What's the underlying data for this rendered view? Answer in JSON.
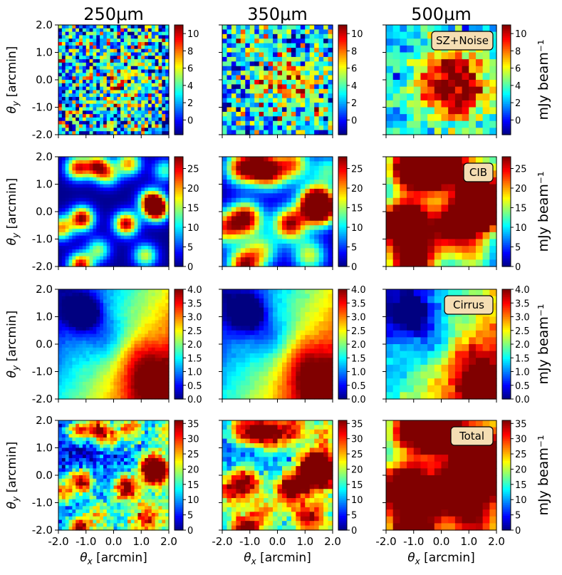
{
  "chart_data": {
    "type": "heatmap",
    "column_titles": [
      "250μm",
      "350μm",
      "500μm"
    ],
    "xlabel": "θx [arcmin]",
    "ylabel": "θy [arcmin]",
    "colorbar_label": "mJy beam⁻¹",
    "x_ticks": [
      "-2.0",
      "-1.0",
      "0.0",
      "1.0",
      "2.0"
    ],
    "y_ticks": [
      "2.0",
      "1.0",
      "0.0",
      "-1.0",
      "-2.0"
    ],
    "xlim": [
      -2.0,
      2.0
    ],
    "ylim": [
      -2.0,
      2.0
    ],
    "colormap": "jet",
    "pixel_counts": [
      32,
      24,
      16
    ],
    "rows": [
      {
        "label": "SZ+Noise",
        "clim": [
          -1.7,
          11.0
        ],
        "colorbar_ticks": [
          "0",
          "2",
          "4",
          "6",
          "8",
          "10"
        ],
        "colorbar_tick_values": [
          0,
          2,
          4,
          6,
          8,
          10
        ]
      },
      {
        "label": "CIB",
        "clim": [
          0,
          28
        ],
        "colorbar_ticks": [
          "0",
          "5",
          "10",
          "15",
          "20",
          "25"
        ],
        "colorbar_tick_values": [
          0,
          5,
          10,
          15,
          20,
          25
        ]
      },
      {
        "label": "Cirrus",
        "clim": [
          0,
          4.0
        ],
        "colorbar_ticks": [
          "0.0",
          "0.5",
          "1.0",
          "1.5",
          "2.0",
          "2.5",
          "3.0",
          "3.5",
          "4.0"
        ],
        "colorbar_tick_values": [
          0,
          0.5,
          1,
          1.5,
          2,
          2.5,
          3,
          3.5,
          4
        ]
      },
      {
        "label": "Total",
        "clim": [
          0,
          36
        ],
        "colorbar_ticks": [
          "0",
          "5",
          "10",
          "15",
          "20",
          "25",
          "30",
          "35"
        ],
        "colorbar_tick_values": [
          0,
          5,
          10,
          15,
          20,
          25,
          30,
          35
        ]
      }
    ],
    "sources_arcmin": [
      {
        "x": -1.3,
        "y": 1.6,
        "flux": 24
      },
      {
        "x": -0.6,
        "y": 1.65,
        "flux": 24
      },
      {
        "x": 0.55,
        "y": 1.75,
        "flux": 20
      },
      {
        "x": 1.55,
        "y": 0.1,
        "flux": 34
      },
      {
        "x": -1.15,
        "y": -0.25,
        "flux": 28
      },
      {
        "x": 0.45,
        "y": -0.45,
        "flux": 27
      },
      {
        "x": -1.9,
        "y": -0.6,
        "flux": 20
      },
      {
        "x": -1.2,
        "y": -1.95,
        "flux": 26
      },
      {
        "x": 1.35,
        "y": 0.4,
        "flux": 22
      },
      {
        "x": -0.2,
        "y": 1.35,
        "flux": 15
      },
      {
        "x": 1.15,
        "y": -1.6,
        "flux": 16
      },
      {
        "x": -0.55,
        "y": -1.4,
        "flux": 14
      },
      {
        "x": 1.85,
        "y": 1.5,
        "flux": 12
      }
    ],
    "sz_decrement": {
      "x": 0.4,
      "y": -0.2,
      "peak": 10
    }
  }
}
